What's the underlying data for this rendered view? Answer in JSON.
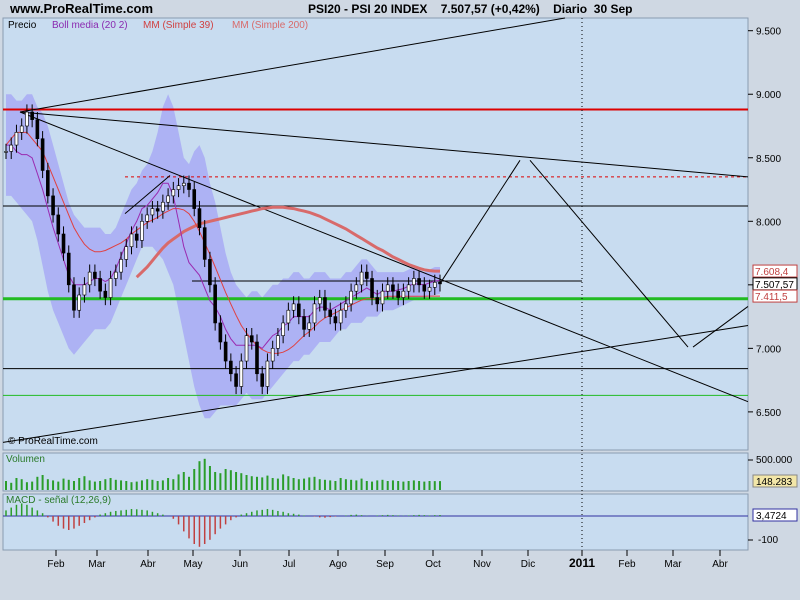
{
  "header": {
    "site": "www.ProRealTime.com",
    "title": "PSI20 - PSI 20 INDEX    7.507,57 (+0,42%)    Diario  30 Sep"
  },
  "colors": {
    "bg": "#cfd8e3",
    "panel": "#c8dcf0",
    "price": "#000000",
    "boll": "#a4a4f6",
    "ma39": "#e04040",
    "ma200": "#d86a6a",
    "volume": "#2a9d2a",
    "macd": "#2a9d2a",
    "signal": "#9a2ab0",
    "red_line": "#dd0000",
    "green_line": "#22bb22"
  },
  "chart_data": {
    "type": "line",
    "title": "PSI20 - PSI 20 INDEX",
    "price_panel": {
      "legend": [
        "Precio",
        "Boll media (20 2)",
        "MM (Simple 39)",
        "MM (Simple 200)"
      ],
      "y_ticks": [
        "9.500",
        "9.000",
        "8.500",
        "8.000",
        "7.500",
        "7.000",
        "6.500"
      ],
      "ylim": [
        6200,
        9600
      ],
      "tags": [
        {
          "label": "7.608,4",
          "value": 7608.4,
          "color": "#c04040"
        },
        {
          "label": "7.507,57",
          "value": 7507.57,
          "color": "#000000"
        },
        {
          "label": "7.411,5",
          "value": 7411.5,
          "color": "#c04040"
        }
      ],
      "horizontal_levels": [
        {
          "value": 8880,
          "style": "red-thick"
        },
        {
          "value": 8350,
          "style": "red-dashed"
        },
        {
          "value": 8120,
          "style": "black"
        },
        {
          "value": 7390,
          "style": "green-thick"
        },
        {
          "value": 6840,
          "style": "black"
        },
        {
          "value": 6630,
          "style": "green-thin"
        }
      ],
      "close": [
        8550,
        8600,
        8700,
        8750,
        8860,
        8800,
        8650,
        8400,
        8200,
        8050,
        7900,
        7750,
        7500,
        7300,
        7420,
        7500,
        7600,
        7550,
        7450,
        7400,
        7550,
        7600,
        7700,
        7800,
        7900,
        7850,
        8000,
        8050,
        8100,
        8080,
        8150,
        8200,
        8250,
        8280,
        8300,
        8250,
        8100,
        7950,
        7700,
        7500,
        7200,
        7050,
        6900,
        6800,
        6700,
        6900,
        7100,
        7050,
        6800,
        6700,
        6900,
        7000,
        7100,
        7200,
        7300,
        7350,
        7250,
        7150,
        7200,
        7350,
        7400,
        7300,
        7250,
        7200,
        7300,
        7350,
        7450,
        7500,
        7600,
        7550,
        7400,
        7350,
        7450,
        7500,
        7450,
        7400,
        7450,
        7500,
        7550,
        7500,
        7450,
        7480,
        7520,
        7507.57
      ],
      "upper": [
        9000,
        9000,
        8950,
        8950,
        9000,
        9000,
        8900,
        8850,
        8750,
        8600,
        8450,
        8300,
        8150,
        8050,
        8000,
        7950,
        7950,
        7950,
        7950,
        7900,
        7900,
        7950,
        8050,
        8150,
        8250,
        8300,
        8400,
        8450,
        8550,
        8700,
        8900,
        9000,
        8900,
        8700,
        8500,
        8450,
        8550,
        8600,
        8500,
        8300,
        8150,
        7950,
        7750,
        7600,
        7500,
        7450,
        7400,
        7450,
        7450,
        7400,
        7450,
        7500,
        7500,
        7550,
        7550,
        7600,
        7600,
        7550,
        7550,
        7600,
        7600,
        7600,
        7550,
        7550,
        7550,
        7600,
        7600,
        7650,
        7700,
        7700,
        7650,
        7600,
        7600,
        7600,
        7600,
        7600,
        7600,
        7620,
        7640,
        7620,
        7600,
        7620,
        7640,
        7640
      ],
      "lower": [
        8200,
        8200,
        8150,
        8100,
        8050,
        8000,
        7850,
        7650,
        7450,
        7300,
        7200,
        7100,
        7000,
        6950,
        7000,
        7050,
        7100,
        7150,
        7150,
        7150,
        7200,
        7300,
        7400,
        7500,
        7600,
        7700,
        7800,
        7800,
        7800,
        7750,
        7700,
        7600,
        7500,
        7300,
        7100,
        6900,
        6700,
        6550,
        6450,
        6450,
        6500,
        6550,
        6550,
        6550,
        6550,
        6600,
        6650,
        6600,
        6600,
        6600,
        6650,
        6700,
        6750,
        6800,
        6850,
        6900,
        6900,
        6950,
        6950,
        7000,
        7050,
        7050,
        7050,
        7100,
        7150,
        7150,
        7200,
        7200,
        7200,
        7250,
        7250,
        7250,
        7300,
        7300,
        7300,
        7320,
        7340,
        7360,
        7380,
        7390,
        7400,
        7410,
        7420,
        7430
      ],
      "ma39": [
        8600,
        8650,
        8700,
        8700,
        8700,
        8650,
        8600,
        8550,
        8450,
        8350,
        8250,
        8150,
        8050,
        7950,
        7880,
        7820,
        7780,
        7760,
        7760,
        7770,
        7790,
        7810,
        7830,
        7860,
        7900,
        7930,
        7960,
        7990,
        8010,
        8030,
        8060,
        8080,
        8100,
        8100,
        8090,
        8060,
        8000,
        7920,
        7830,
        7740,
        7640,
        7540,
        7440,
        7350,
        7260,
        7180,
        7120,
        7070,
        7020,
        6990,
        6970,
        6960,
        6960,
        6970,
        6990,
        7020,
        7060,
        7100,
        7130,
        7170,
        7210,
        7240,
        7260,
        7280,
        7300,
        7320,
        7340,
        7360,
        7380,
        7390,
        7390,
        7390,
        7400,
        7410,
        7410,
        7410,
        7410,
        7410,
        7410,
        7410,
        7410,
        7411,
        7411,
        7411.5
      ],
      "ma200": [
        7560,
        7600,
        7640,
        7690,
        7740,
        7790,
        7830,
        7860,
        7890,
        7920,
        7940,
        7960,
        7980,
        7990,
        8000,
        8010,
        8020,
        8030,
        8040,
        8050,
        8060,
        8070,
        8080,
        8090,
        8100,
        8105,
        8110,
        8110,
        8110,
        8105,
        8100,
        8090,
        8080,
        8070,
        8055,
        8040,
        8020,
        8000,
        7980,
        7960,
        7940,
        7915,
        7890,
        7865,
        7840,
        7815,
        7790,
        7770,
        7745,
        7720,
        7700,
        7680,
        7660,
        7645,
        7630,
        7618,
        7612,
        7608,
        7608.4
      ]
    },
    "volume_panel": {
      "label": "Volumen",
      "y_ticks": [
        "500.000"
      ],
      "last_label": "148.283",
      "values": [
        150,
        120,
        200,
        180,
        130,
        140,
        220,
        250,
        180,
        160,
        140,
        190,
        170,
        150,
        200,
        230,
        160,
        140,
        150,
        180,
        200,
        170,
        160,
        150,
        130,
        140,
        160,
        180,
        170,
        150,
        160,
        200,
        180,
        260,
        300,
        220,
        350,
        480,
        520,
        400,
        300,
        280,
        350,
        330,
        300,
        280,
        250,
        230,
        220,
        210,
        240,
        200,
        190,
        260,
        230,
        200,
        180,
        190,
        210,
        220,
        180,
        170,
        160,
        150,
        200,
        180,
        170,
        160,
        190,
        150,
        140,
        160,
        170,
        150,
        160,
        150,
        140,
        150,
        160,
        150,
        140,
        150,
        148,
        148.283
      ]
    },
    "macd_panel": {
      "label": "MACD - señal (12,26,9)",
      "y_ticks": [
        "-100"
      ],
      "last_label": "3,4724",
      "values": [
        20,
        30,
        40,
        45,
        40,
        30,
        20,
        10,
        -5,
        -20,
        -35,
        -45,
        -50,
        -45,
        -35,
        -25,
        -15,
        -5,
        5,
        10,
        15,
        18,
        20,
        22,
        25,
        24,
        22,
        20,
        15,
        10,
        5,
        0,
        -10,
        -30,
        -55,
        -80,
        -100,
        -110,
        -100,
        -85,
        -65,
        -45,
        -30,
        -15,
        -5,
        5,
        10,
        15,
        20,
        22,
        25,
        22,
        18,
        15,
        10,
        8,
        5,
        2,
        0,
        -2,
        -5,
        -6,
        -4,
        -2,
        0,
        2,
        4,
        5,
        3,
        1,
        0,
        2,
        3,
        4,
        3,
        2,
        1,
        2,
        3,
        4,
        3,
        2,
        3,
        3.47
      ]
    },
    "x_ticks": [
      "Feb",
      "Mar",
      "Abr",
      "May",
      "Jun",
      "Jul",
      "Ago",
      "Sep",
      "Oct",
      "Nov",
      "Dic",
      "2011",
      "Feb",
      "Mar",
      "Abr"
    ],
    "watermark": "© ProRealTime.com"
  }
}
